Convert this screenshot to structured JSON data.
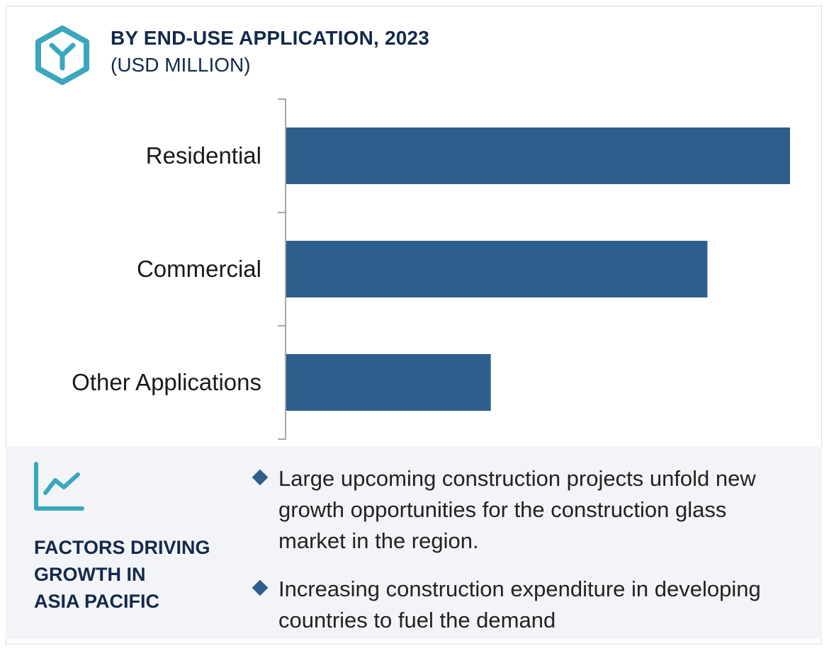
{
  "header": {
    "title": "BY END-USE APPLICATION, 2023",
    "subtitle": "(USD MILLION)",
    "logo_icon": "hexagon-y-logo-icon"
  },
  "colors": {
    "bar": "#2e5e8c",
    "title": "#13294b",
    "accent": "#3aa7bd",
    "panel_bg": "#f3f4f7"
  },
  "chart_data": {
    "type": "bar",
    "orientation": "horizontal",
    "title": "BY END-USE APPLICATION, 2023",
    "subtitle": "(USD MILLION)",
    "categories": [
      "Residential",
      "Commercial",
      "Other Applications"
    ],
    "values": [
      100,
      83.6,
      40.6
    ],
    "xlim": [
      0,
      100
    ],
    "value_axis_shown": false,
    "grid": false
  },
  "factors": {
    "icon": "line-chart-trend-icon",
    "heading_lines": [
      "FACTORS DRIVING",
      "GROWTH IN",
      "ASIA PACIFIC"
    ],
    "bullets": [
      {
        "lines": [
          "Large upcoming construction projects unfold new",
          "growth opportunities for the construction glass",
          "market in the region."
        ]
      },
      {
        "lines": [
          "Increasing construction expenditure in developing",
          "countries to fuel the demand"
        ]
      }
    ]
  }
}
